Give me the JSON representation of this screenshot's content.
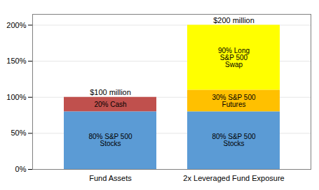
{
  "chart_data": {
    "type": "bar",
    "stacked": true,
    "categories": [
      "Fund Assets",
      "2x Leveraged Fund Exposure"
    ],
    "series": [
      {
        "name": "80% S&P 500\nStocks",
        "color": "#5B9BD5",
        "values": [
          80,
          80
        ]
      },
      {
        "name": "20% Cash",
        "color": "#C0504D",
        "values": [
          20,
          0
        ]
      },
      {
        "name": "30% S&P 500\nFutures",
        "color": "#FFC000",
        "values": [
          0,
          30
        ]
      },
      {
        "name": "90% Long\nS&P 500\nSwap",
        "color": "#FFFF00",
        "values": [
          0,
          90
        ]
      }
    ],
    "annotations": [
      {
        "text": "$100 million",
        "x": "Fund Assets",
        "y": 102
      },
      {
        "text": "$200 million",
        "x": "2x Leveraged Fund Exposure",
        "y": 202
      }
    ],
    "ylim": [
      0,
      215
    ],
    "yticks": [
      {
        "value": 0,
        "label": "0%"
      },
      {
        "value": 50,
        "label": "50%"
      },
      {
        "value": 100,
        "label": "100%"
      },
      {
        "value": 150,
        "label": "150%"
      },
      {
        "value": 200,
        "label": "200%"
      }
    ],
    "grid": true
  }
}
